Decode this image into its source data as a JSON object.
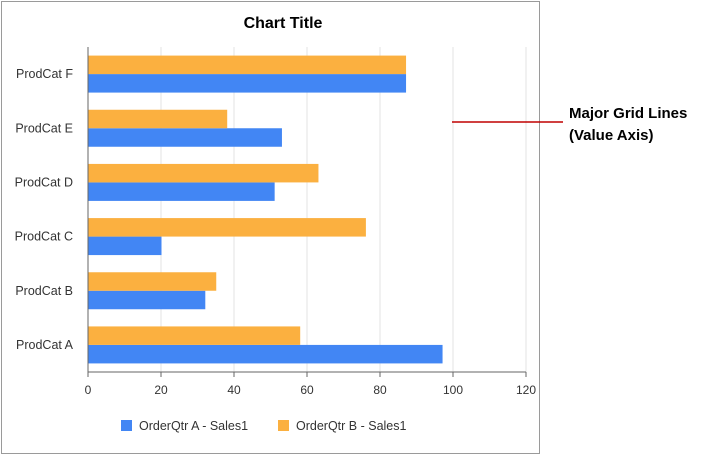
{
  "chart_data": {
    "type": "bar",
    "orientation": "horizontal",
    "title": "Chart Title",
    "categories": [
      "ProdCat A",
      "ProdCat B",
      "ProdCat C",
      "ProdCat D",
      "ProdCat E",
      "ProdCat F"
    ],
    "series": [
      {
        "name": "OrderQtr A - Sales1",
        "color": "#4286f4",
        "values": [
          97,
          32,
          20,
          51,
          53,
          87
        ]
      },
      {
        "name": "OrderQtr B - Sales1",
        "color": "#fbb040",
        "values": [
          58,
          35,
          76,
          63,
          38,
          87
        ]
      }
    ],
    "xlim": [
      0,
      120
    ],
    "xticks": [
      0,
      20,
      40,
      60,
      80,
      100,
      120
    ],
    "grid": true,
    "legend": "bottom"
  },
  "annotation": {
    "line1": "Major Grid Lines",
    "line2": "(Value Axis)",
    "color": "#c00000"
  }
}
